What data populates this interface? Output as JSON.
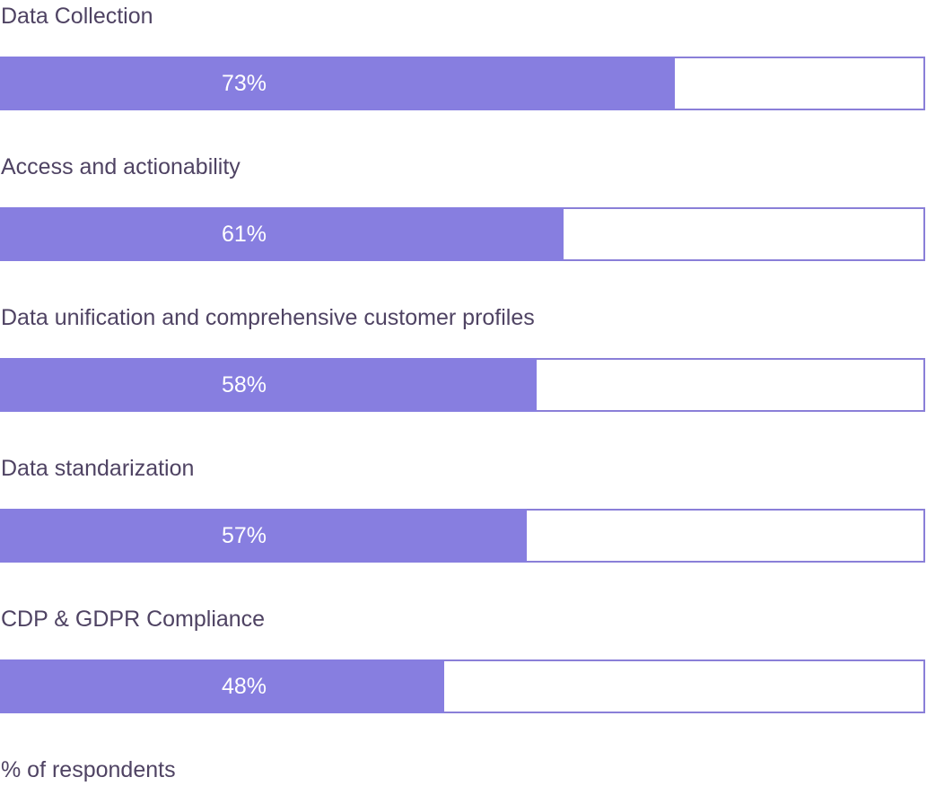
{
  "chart_data": {
    "type": "bar",
    "orientation": "horizontal",
    "categories": [
      "Data Collection",
      "Access and actionability",
      "Data unification and comprehensive customer profiles",
      "Data standarization",
      "CDP & GDPR Compliance"
    ],
    "values": [
      73,
      61,
      58,
      57,
      48
    ],
    "value_labels": [
      "73%",
      "61%",
      "58%",
      "57%",
      "48%"
    ],
    "xlim": [
      0,
      100
    ],
    "grid": false,
    "footer": "% of respondents",
    "colors": {
      "bar": "#877ee0",
      "track_border": "#8a7fd8",
      "label_text": "#4f4363",
      "value_text": "#ffffff"
    }
  }
}
